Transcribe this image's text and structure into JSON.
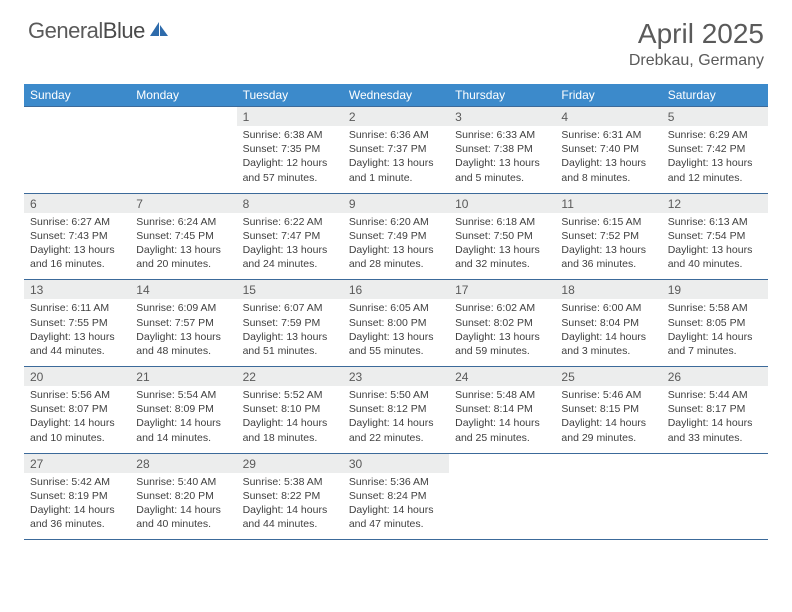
{
  "logo": {
    "general": "General",
    "blue": "Blue"
  },
  "title": "April 2025",
  "location": "Drebkau, Germany",
  "colors": {
    "header_bg": "#3c8acb",
    "header_text": "#ffffff",
    "daynum_bg": "#eceded",
    "rule": "#3c6a9a",
    "text": "#404040",
    "title_text": "#5a5a5a",
    "page_bg": "#ffffff"
  },
  "columns": [
    "Sunday",
    "Monday",
    "Tuesday",
    "Wednesday",
    "Thursday",
    "Friday",
    "Saturday"
  ],
  "weeks": [
    [
      null,
      null,
      {
        "n": "1",
        "sr": "6:38 AM",
        "ss": "7:35 PM",
        "dl": "Daylight: 12 hours and 57 minutes."
      },
      {
        "n": "2",
        "sr": "6:36 AM",
        "ss": "7:37 PM",
        "dl": "Daylight: 13 hours and 1 minute."
      },
      {
        "n": "3",
        "sr": "6:33 AM",
        "ss": "7:38 PM",
        "dl": "Daylight: 13 hours and 5 minutes."
      },
      {
        "n": "4",
        "sr": "6:31 AM",
        "ss": "7:40 PM",
        "dl": "Daylight: 13 hours and 8 minutes."
      },
      {
        "n": "5",
        "sr": "6:29 AM",
        "ss": "7:42 PM",
        "dl": "Daylight: 13 hours and 12 minutes."
      }
    ],
    [
      {
        "n": "6",
        "sr": "6:27 AM",
        "ss": "7:43 PM",
        "dl": "Daylight: 13 hours and 16 minutes."
      },
      {
        "n": "7",
        "sr": "6:24 AM",
        "ss": "7:45 PM",
        "dl": "Daylight: 13 hours and 20 minutes."
      },
      {
        "n": "8",
        "sr": "6:22 AM",
        "ss": "7:47 PM",
        "dl": "Daylight: 13 hours and 24 minutes."
      },
      {
        "n": "9",
        "sr": "6:20 AM",
        "ss": "7:49 PM",
        "dl": "Daylight: 13 hours and 28 minutes."
      },
      {
        "n": "10",
        "sr": "6:18 AM",
        "ss": "7:50 PM",
        "dl": "Daylight: 13 hours and 32 minutes."
      },
      {
        "n": "11",
        "sr": "6:15 AM",
        "ss": "7:52 PM",
        "dl": "Daylight: 13 hours and 36 minutes."
      },
      {
        "n": "12",
        "sr": "6:13 AM",
        "ss": "7:54 PM",
        "dl": "Daylight: 13 hours and 40 minutes."
      }
    ],
    [
      {
        "n": "13",
        "sr": "6:11 AM",
        "ss": "7:55 PM",
        "dl": "Daylight: 13 hours and 44 minutes."
      },
      {
        "n": "14",
        "sr": "6:09 AM",
        "ss": "7:57 PM",
        "dl": "Daylight: 13 hours and 48 minutes."
      },
      {
        "n": "15",
        "sr": "6:07 AM",
        "ss": "7:59 PM",
        "dl": "Daylight: 13 hours and 51 minutes."
      },
      {
        "n": "16",
        "sr": "6:05 AM",
        "ss": "8:00 PM",
        "dl": "Daylight: 13 hours and 55 minutes."
      },
      {
        "n": "17",
        "sr": "6:02 AM",
        "ss": "8:02 PM",
        "dl": "Daylight: 13 hours and 59 minutes."
      },
      {
        "n": "18",
        "sr": "6:00 AM",
        "ss": "8:04 PM",
        "dl": "Daylight: 14 hours and 3 minutes."
      },
      {
        "n": "19",
        "sr": "5:58 AM",
        "ss": "8:05 PM",
        "dl": "Daylight: 14 hours and 7 minutes."
      }
    ],
    [
      {
        "n": "20",
        "sr": "5:56 AM",
        "ss": "8:07 PM",
        "dl": "Daylight: 14 hours and 10 minutes."
      },
      {
        "n": "21",
        "sr": "5:54 AM",
        "ss": "8:09 PM",
        "dl": "Daylight: 14 hours and 14 minutes."
      },
      {
        "n": "22",
        "sr": "5:52 AM",
        "ss": "8:10 PM",
        "dl": "Daylight: 14 hours and 18 minutes."
      },
      {
        "n": "23",
        "sr": "5:50 AM",
        "ss": "8:12 PM",
        "dl": "Daylight: 14 hours and 22 minutes."
      },
      {
        "n": "24",
        "sr": "5:48 AM",
        "ss": "8:14 PM",
        "dl": "Daylight: 14 hours and 25 minutes."
      },
      {
        "n": "25",
        "sr": "5:46 AM",
        "ss": "8:15 PM",
        "dl": "Daylight: 14 hours and 29 minutes."
      },
      {
        "n": "26",
        "sr": "5:44 AM",
        "ss": "8:17 PM",
        "dl": "Daylight: 14 hours and 33 minutes."
      }
    ],
    [
      {
        "n": "27",
        "sr": "5:42 AM",
        "ss": "8:19 PM",
        "dl": "Daylight: 14 hours and 36 minutes."
      },
      {
        "n": "28",
        "sr": "5:40 AM",
        "ss": "8:20 PM",
        "dl": "Daylight: 14 hours and 40 minutes."
      },
      {
        "n": "29",
        "sr": "5:38 AM",
        "ss": "8:22 PM",
        "dl": "Daylight: 14 hours and 44 minutes."
      },
      {
        "n": "30",
        "sr": "5:36 AM",
        "ss": "8:24 PM",
        "dl": "Daylight: 14 hours and 47 minutes."
      },
      null,
      null,
      null
    ]
  ]
}
